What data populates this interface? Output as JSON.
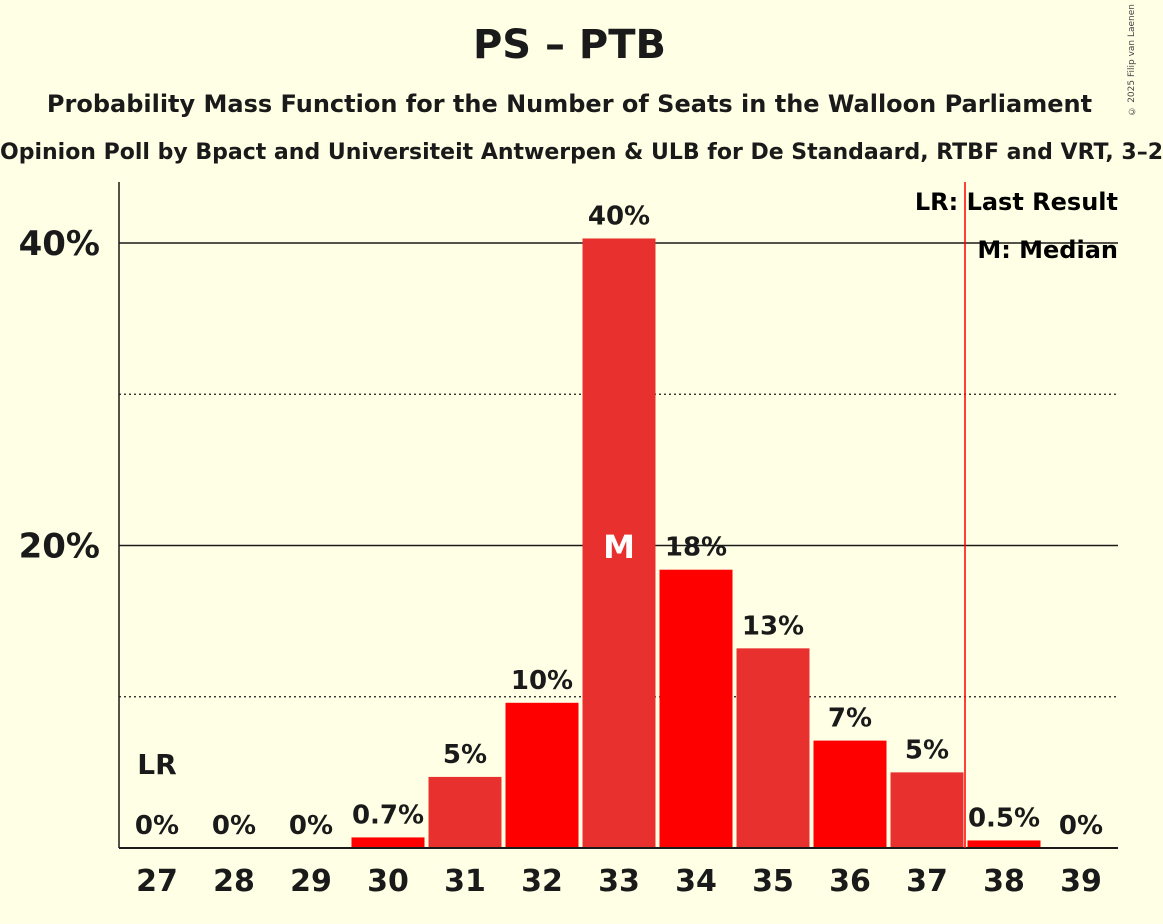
{
  "header": {
    "title": "PS – PTB",
    "subtitle": "Probability Mass Function for the Number of Seats in the Walloon Parliament",
    "subsubtitle": "Opinion Poll by Bpact and Universiteit Antwerpen & ULB for De Standaard, RTBF and VRT, 3–2",
    "copyright": "© 2025 Filip van Laenen"
  },
  "legend": {
    "last_result": "LR: Last Result",
    "median": "M: Median"
  },
  "chart_data": {
    "type": "bar",
    "categories": [
      "27",
      "28",
      "29",
      "30",
      "31",
      "32",
      "33",
      "34",
      "35",
      "36",
      "37",
      "38",
      "39"
    ],
    "values": [
      0,
      0,
      0,
      0.7,
      4.7,
      9.6,
      40.3,
      18.4,
      13.2,
      7.1,
      5.0,
      0.5,
      0
    ],
    "value_labels": [
      "0%",
      "0%",
      "0%",
      "0.7%",
      "5%",
      "10%",
      "40%",
      "18%",
      "13%",
      "7%",
      "5%",
      "0.5%",
      "0%"
    ],
    "colors": [
      "#e8302e",
      "#ff0000",
      "#e8302e",
      "#ff0000",
      "#e8302e",
      "#ff0000",
      "#e8302e",
      "#ff0000",
      "#e8302e",
      "#ff0000",
      "#e8302e",
      "#ff0000",
      "#e8302e"
    ],
    "ylim": [
      0,
      44
    ],
    "yticks": [
      20,
      40
    ],
    "ytick_labels": [
      "20%",
      "40%"
    ],
    "minor_gridlines": [
      10,
      30
    ],
    "last_result": {
      "category": "27",
      "label": "LR"
    },
    "median": {
      "category": "33",
      "label": "M"
    },
    "majority_line_after": "37",
    "majority_line_color": "#ff0000"
  }
}
